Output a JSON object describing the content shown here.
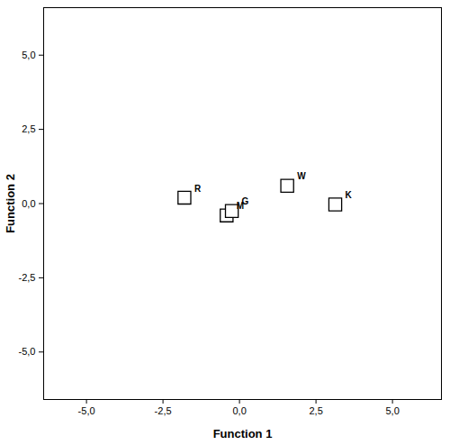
{
  "chart_data": {
    "type": "scatter",
    "x_label": "Function 1",
    "y_label": "Function 2",
    "labels": [
      "R",
      "M",
      "G",
      "W",
      "K"
    ],
    "x": [
      -1.8,
      -0.42,
      -0.25,
      1.56,
      3.13
    ],
    "y": [
      0.2,
      -0.4,
      -0.25,
      0.6,
      -0.03
    ],
    "color": "#000000",
    "marker": "square",
    "xlim": [
      -6.4,
      6.6
    ],
    "ylim": [
      -6.6,
      6.6
    ],
    "xticks": [
      {
        "value": -5,
        "label": "-5,0"
      },
      {
        "value": -2.5,
        "label": "-2,5"
      },
      {
        "value": 0,
        "label": "0,0"
      },
      {
        "value": 2.5,
        "label": "2,5"
      },
      {
        "value": 5,
        "label": "5,0"
      }
    ],
    "yticks": [
      {
        "value": -5,
        "label": "-5,0"
      },
      {
        "value": -2.5,
        "label": "-2,5"
      },
      {
        "value": 0,
        "label": "0,0"
      },
      {
        "value": 2.5,
        "label": "2,5"
      },
      {
        "value": 5,
        "label": "5,0"
      }
    ],
    "grid": false
  }
}
